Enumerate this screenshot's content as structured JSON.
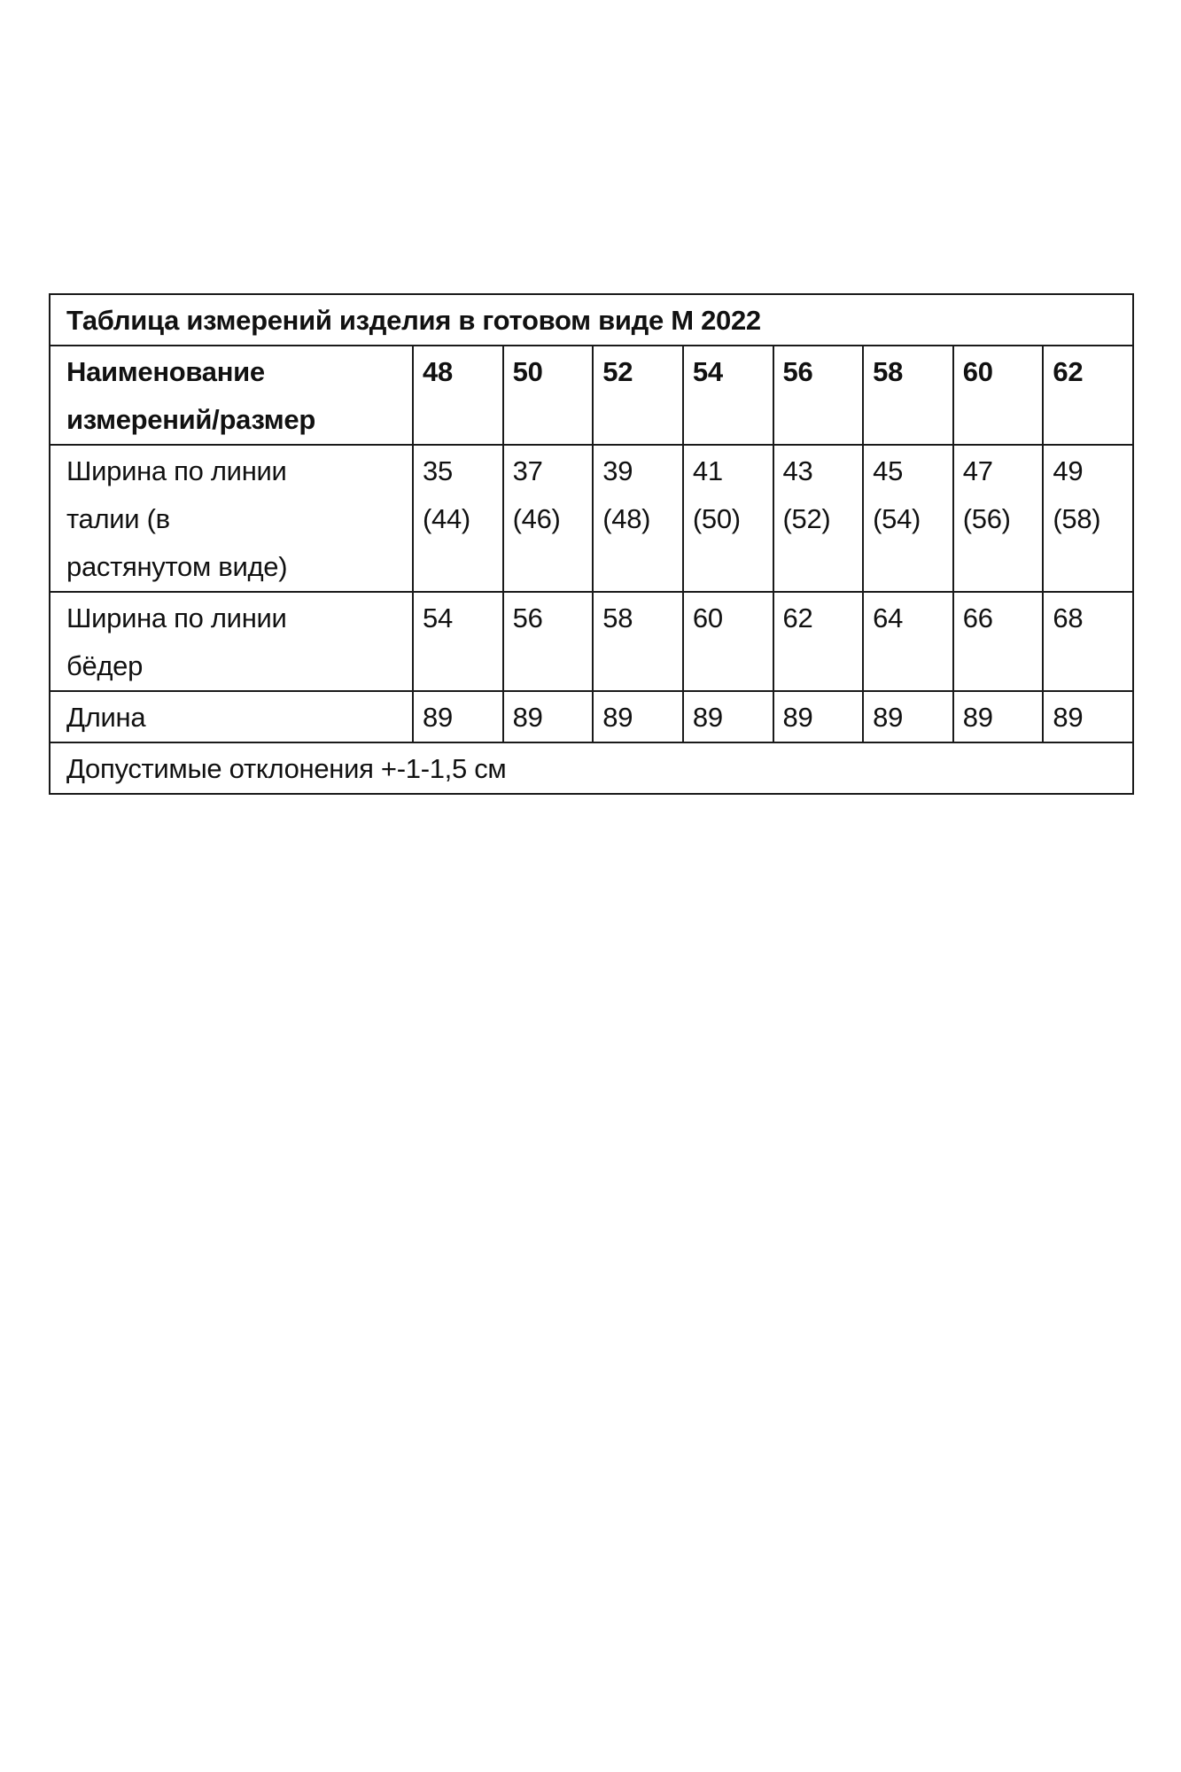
{
  "title": "Таблица измерений изделия в готовом виде М 2022",
  "header": {
    "label": "Наименование\nизмерений/размер",
    "sizes": [
      "48",
      "50",
      "52",
      "54",
      "56",
      "58",
      "60",
      "62"
    ]
  },
  "rows": [
    {
      "label": "Ширина по линии\nталии (в\nрастянутом виде)",
      "values": [
        "35\n(44)",
        "37\n(46)",
        "39\n(48)",
        "41\n(50)",
        "43\n(52)",
        "45\n(54)",
        "47\n(56)",
        "49\n(58)"
      ]
    },
    {
      "label": "Ширина по линии\nбёдер",
      "values": [
        "54",
        "56",
        "58",
        "60",
        "62",
        "64",
        "66",
        "68"
      ]
    },
    {
      "label": "Длина",
      "values": [
        "89",
        "89",
        "89",
        "89",
        "89",
        "89",
        "89",
        "89"
      ]
    }
  ],
  "footer": "Допустимые отклонения +-1-1,5 см"
}
